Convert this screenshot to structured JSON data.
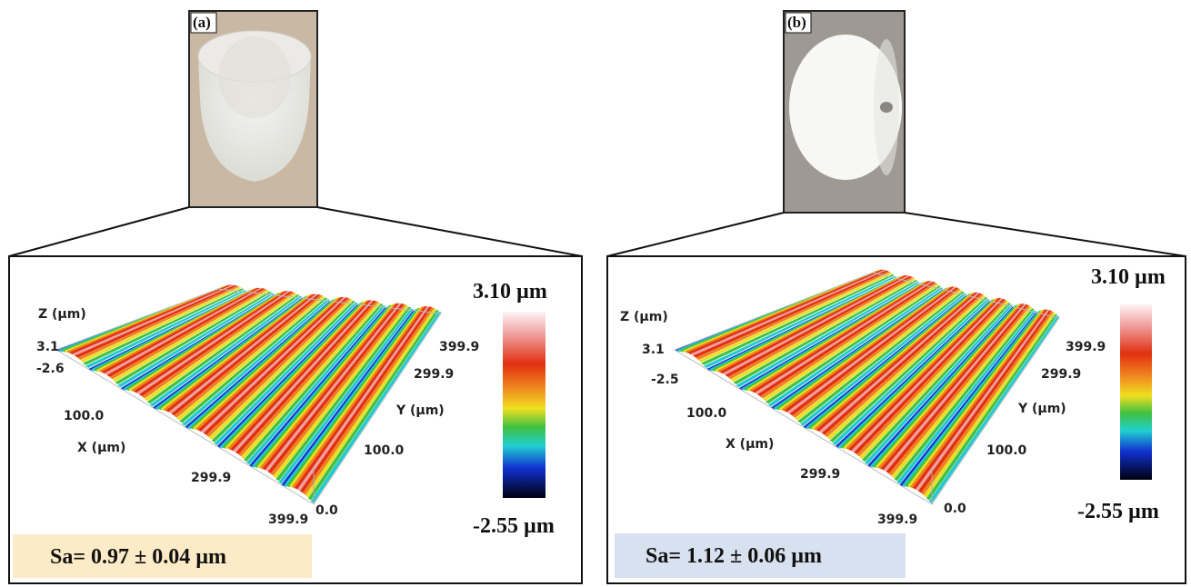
{
  "panels": [
    {
      "label": "(a)",
      "z_axis": "Z (µm)",
      "z_max": "3.1",
      "z_min": "-2.6",
      "x_axis": "X (µm)",
      "x_ticks": [
        "100.0",
        "299.9",
        "399.9"
      ],
      "y_axis": "Y (µm)",
      "y_ticks": [
        "0.0",
        "100.0",
        "299.9",
        "399.9"
      ],
      "colorbar_max": "3.10 µm",
      "colorbar_min": "-2.55 µm",
      "roughness": "Sa= 0.97 ± 0.04 µm"
    },
    {
      "label": "(b)",
      "z_axis": "Z (µm)",
      "z_max": "3.1",
      "z_min": "-2.5",
      "x_axis": "X (µm)",
      "x_ticks": [
        "100.0",
        "299.9",
        "399.9"
      ],
      "y_axis": "Y (µm)",
      "y_ticks": [
        "0.0",
        "100.0",
        "299.9",
        "399.9"
      ],
      "colorbar_max": "3.10 µm",
      "colorbar_min": "-2.55 µm",
      "roughness": "Sa= 1.12 ± 0.06 µm"
    }
  ]
}
